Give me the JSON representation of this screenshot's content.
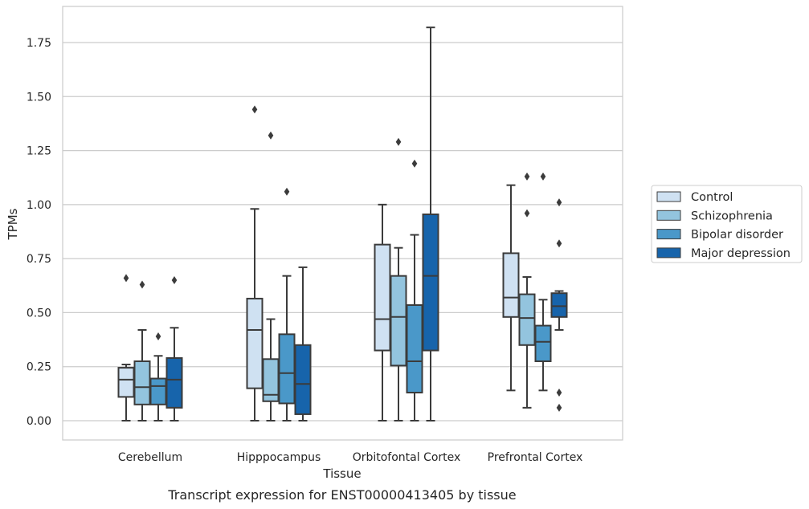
{
  "chart_data": {
    "type": "box",
    "caption": "Transcript expression for ENST00000413405 by tissue",
    "xlabel": "Tissue",
    "ylabel": "TPMs",
    "ylim": [
      -0.08,
      1.92
    ],
    "yticks": [
      "0.00",
      "0.25",
      "0.50",
      "0.75",
      "1.00",
      "1.25",
      "1.50",
      "1.75"
    ],
    "ytick_values": [
      0,
      0.25,
      0.5,
      0.75,
      1.0,
      1.25,
      1.5,
      1.75
    ],
    "grid": true,
    "legend_position": "right",
    "categories": [
      "Cerebellum",
      "Hipppocampus",
      "Orbitofontal Cortex",
      "Prefrontal Cortex"
    ],
    "series": [
      {
        "name": "Control",
        "color": "#cfe1f2",
        "boxes": [
          {
            "whislo": 0.0,
            "q1": 0.11,
            "med": 0.19,
            "q3": 0.245,
            "whishi": 0.26,
            "fliers": [
              0.66
            ]
          },
          {
            "whislo": 0.0,
            "q1": 0.15,
            "med": 0.42,
            "q3": 0.565,
            "whishi": 0.98,
            "fliers": [
              1.44
            ]
          },
          {
            "whislo": 0.0,
            "q1": 0.325,
            "med": 0.47,
            "q3": 0.815,
            "whishi": 1.0,
            "fliers": []
          },
          {
            "whislo": 0.14,
            "q1": 0.48,
            "med": 0.57,
            "q3": 0.775,
            "whishi": 1.09,
            "fliers": []
          }
        ]
      },
      {
        "name": "Schizophrenia",
        "color": "#93c4de",
        "boxes": [
          {
            "whislo": 0.0,
            "q1": 0.075,
            "med": 0.155,
            "q3": 0.275,
            "whishi": 0.42,
            "fliers": [
              0.63
            ]
          },
          {
            "whislo": 0.0,
            "q1": 0.09,
            "med": 0.12,
            "q3": 0.285,
            "whishi": 0.47,
            "fliers": [
              1.32
            ]
          },
          {
            "whislo": 0.0,
            "q1": 0.255,
            "med": 0.48,
            "q3": 0.67,
            "whishi": 0.8,
            "fliers": [
              1.29
            ]
          },
          {
            "whislo": 0.06,
            "q1": 0.35,
            "med": 0.475,
            "q3": 0.585,
            "whishi": 0.665,
            "fliers": [
              1.13,
              0.96
            ]
          }
        ]
      },
      {
        "name": "Bipolar disorder",
        "color": "#4a98c9",
        "boxes": [
          {
            "whislo": 0.0,
            "q1": 0.075,
            "med": 0.16,
            "q3": 0.195,
            "whishi": 0.3,
            "fliers": [
              0.39
            ]
          },
          {
            "whislo": 0.0,
            "q1": 0.08,
            "med": 0.22,
            "q3": 0.4,
            "whishi": 0.67,
            "fliers": [
              1.06
            ]
          },
          {
            "whislo": 0.0,
            "q1": 0.13,
            "med": 0.275,
            "q3": 0.535,
            "whishi": 0.86,
            "fliers": [
              1.19
            ]
          },
          {
            "whislo": 0.14,
            "q1": 0.275,
            "med": 0.365,
            "q3": 0.44,
            "whishi": 0.56,
            "fliers": [
              1.13
            ]
          }
        ]
      },
      {
        "name": "Major depression",
        "color": "#1764ab",
        "boxes": [
          {
            "whislo": 0.0,
            "q1": 0.06,
            "med": 0.19,
            "q3": 0.29,
            "whishi": 0.43,
            "fliers": [
              0.65
            ]
          },
          {
            "whislo": 0.0,
            "q1": 0.03,
            "med": 0.17,
            "q3": 0.35,
            "whishi": 0.71,
            "fliers": []
          },
          {
            "whislo": 0.0,
            "q1": 0.325,
            "med": 0.67,
            "q3": 0.955,
            "whishi": 1.82,
            "fliers": []
          },
          {
            "whislo": 0.42,
            "q1": 0.48,
            "med": 0.53,
            "q3": 0.59,
            "whishi": 0.6,
            "fliers": [
              1.01,
              0.82,
              0.13,
              0.06
            ]
          }
        ]
      }
    ]
  }
}
